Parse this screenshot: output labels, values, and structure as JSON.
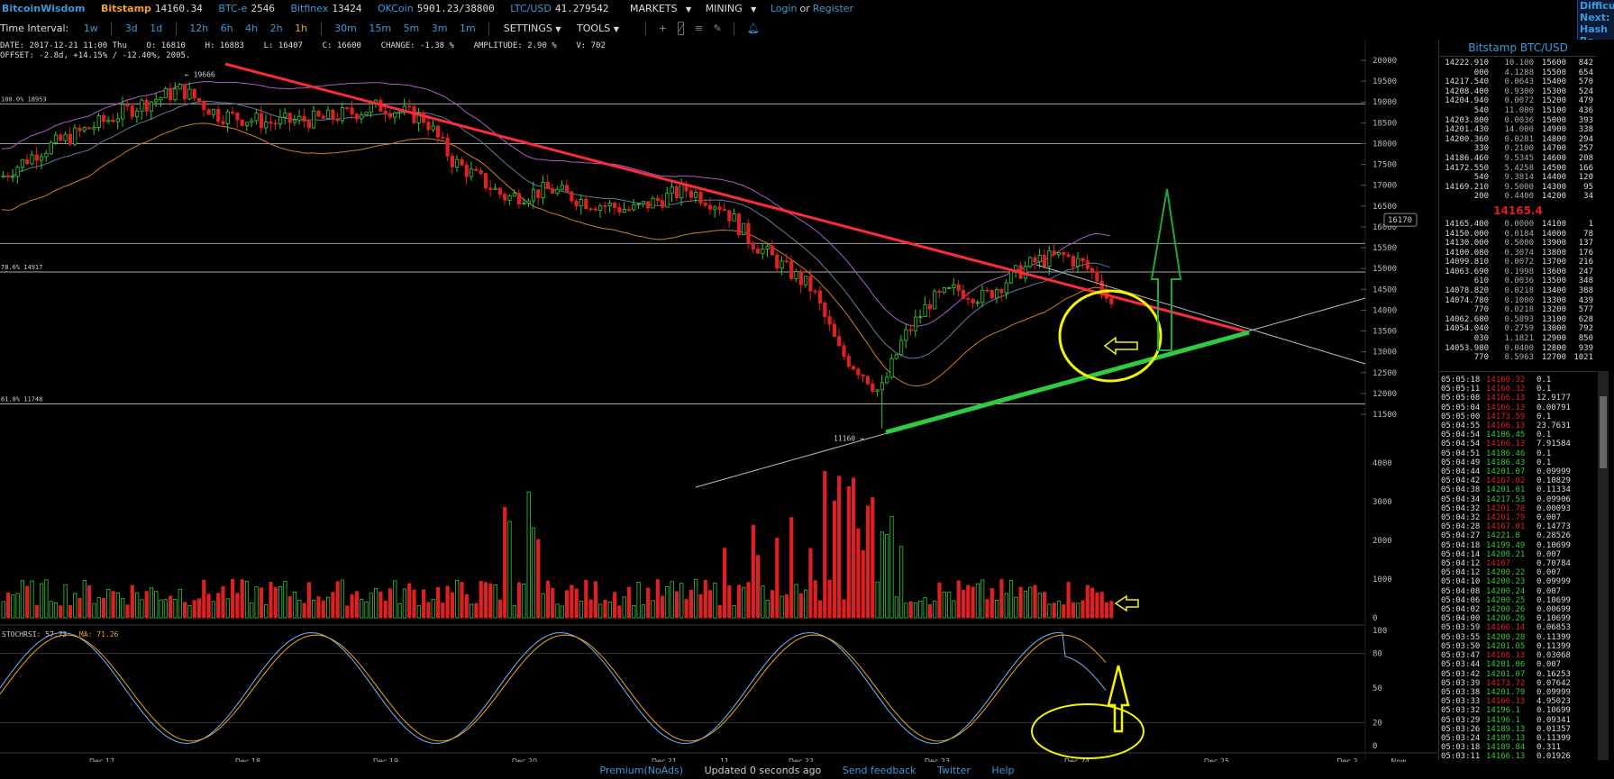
{
  "topbar": {
    "brand": "BitcoinWisdom",
    "tickers": [
      {
        "name": "Bitstamp",
        "price": "14160.34"
      },
      {
        "name": "BTC-e",
        "price": "2546"
      },
      {
        "name": "Bitfinex",
        "price": "13424"
      },
      {
        "name": "OKCoin",
        "price": "5901.23/38800"
      },
      {
        "name": "LTC/USD",
        "price": "41.279542"
      }
    ],
    "markets_label": "MARKETS",
    "mining_label": "MINING",
    "login_label": "Login",
    "or_label": "or",
    "register_label": "Register"
  },
  "corner": {
    "line1": "Difficult",
    "line2": "Next:",
    "line3": "Hash Ra"
  },
  "intervalbar": {
    "label": "Time Interval:",
    "intervals": [
      "1w",
      "3d",
      "1d",
      "12h",
      "6h",
      "4h",
      "2h",
      "1h",
      "30m",
      "15m",
      "5m",
      "3m",
      "1m"
    ],
    "active": "1h",
    "settings_label": "SETTINGS",
    "tools_label": "TOOLS"
  },
  "info": {
    "line1": "DATE: 2017-12-21 11:00 Thu    O: 16810    H: 16883    L: 16407    C: 16600    CHANGE: -1.38 %    AMPLITUDE: 2.90 %    V: 702",
    "line2": "OFFSET: -2.8d, +14.15% / -12.40%, 2005."
  },
  "chart_data": {
    "type": "candlestick",
    "market": "Bitstamp BTC/USD",
    "interval": "1h",
    "y_ticks": [
      "20000",
      "19500",
      "19000",
      "18500",
      "18000",
      "17500",
      "17000",
      "16500",
      "16000",
      "15500",
      "15000",
      "14500",
      "14000",
      "13500",
      "13000",
      "12500",
      "12000",
      "11500"
    ],
    "ylim": [
      11500,
      20000
    ],
    "x_labels": [
      "Dec 17",
      "Dec 18",
      "Dec 19",
      "Dec 20",
      "Dec 21",
      "11",
      "Dec 22",
      "Dec 23",
      "Dec 24",
      "Dec 25",
      "Dec 2",
      "Now"
    ],
    "fib_levels": [
      {
        "label": "100.0% 18953",
        "value": 18953
      },
      {
        "label": "78.6% 14917",
        "value": 14917
      },
      {
        "label": "61.8% 11748",
        "value": 11748
      }
    ],
    "high_label": "19666",
    "low_label": "11160",
    "current_label": "16170",
    "volume_ticks": [
      "4000",
      "3000",
      "2000",
      "1000",
      "0"
    ],
    "stochrsi_label": "STOCHRSI: 57.73",
    "stochrsi_ma_label": "MA: 71.26",
    "stochrsi_ticks": [
      "100",
      "80",
      "50",
      "20",
      "0"
    ],
    "colors": {
      "up": "#35c935",
      "down": "#e02020",
      "trend_red": "#ff2a3a",
      "trend_green": "#2ecc40",
      "annotation": "#f5f500",
      "arrow_green": "#1fa83a"
    }
  },
  "orderbook": {
    "title": "Bitstamp BTC/USD",
    "asks": [
      [
        "14222.910",
        "10.100",
        "15600",
        "842"
      ],
      [
        "000",
        "4.1288",
        "15500",
        "654"
      ],
      [
        "14217.540",
        "0.0643",
        "15400",
        "570"
      ],
      [
        "14208.400",
        "0.9300",
        "15300",
        "524"
      ],
      [
        "14204.940",
        "0.0072",
        "15200",
        "479"
      ],
      [
        "540",
        "11.000",
        "15100",
        "436"
      ],
      [
        "14203.800",
        "0.0036",
        "15000",
        "393"
      ],
      [
        "14201.430",
        "14.000",
        "14900",
        "338"
      ],
      [
        "14200.360",
        "0.0281",
        "14800",
        "294"
      ],
      [
        "330",
        "0.2100",
        "14700",
        "257"
      ],
      [
        "14186.460",
        "9.5345",
        "14600",
        "208"
      ],
      [
        "14172.550",
        "5.4258",
        "14500",
        "166"
      ],
      [
        "540",
        "9.3814",
        "14400",
        "120"
      ],
      [
        "14169.210",
        "9.5000",
        "14300",
        "95"
      ],
      [
        "200",
        "0.4400",
        "14200",
        "34"
      ]
    ],
    "last": "14165.4",
    "bids": [
      [
        "14165.400",
        "0.0000",
        "14100",
        "1"
      ],
      [
        "14150.000",
        "0.0184",
        "14000",
        "78"
      ],
      [
        "14130.000",
        "0.5000",
        "13900",
        "137"
      ],
      [
        "14100.080",
        "0.3074",
        "13800",
        "176"
      ],
      [
        "14099.810",
        "0.0072",
        "13700",
        "216"
      ],
      [
        "14063.690",
        "0.1998",
        "13600",
        "247"
      ],
      [
        "610",
        "0.0036",
        "13500",
        "348"
      ],
      [
        "14078.820",
        "0.0218",
        "13400",
        "388"
      ],
      [
        "14074.780",
        "0.1000",
        "13300",
        "439"
      ],
      [
        "770",
        "0.0218",
        "13200",
        "577"
      ],
      [
        "14062.680",
        "0.5893",
        "13100",
        "628"
      ],
      [
        "14054.040",
        "0.2759",
        "13000",
        "792"
      ],
      [
        "030",
        "1.1821",
        "12900",
        "850"
      ],
      [
        "14053.980",
        "0.0400",
        "12800",
        "939"
      ],
      [
        "770",
        "8.5963",
        "12700",
        "1021"
      ]
    ]
  },
  "trades": [
    [
      "05:05:18",
      "14160.32",
      "dn",
      "0.1"
    ],
    [
      "05:05:11",
      "14160.32",
      "dn",
      "0.1"
    ],
    [
      "05:05:08",
      "14166.13",
      "dn",
      "12.9177"
    ],
    [
      "05:05:04",
      "14166.13",
      "dn",
      "0.00791"
    ],
    [
      "05:05:00",
      "14173.59",
      "dn",
      "0.1"
    ],
    [
      "05:04:55",
      "14166.13",
      "dn",
      "23.7631"
    ],
    [
      "05:04:54",
      "14186.45",
      "up",
      "0.1"
    ],
    [
      "05:04:54",
      "14166.13",
      "dn",
      "7.91584"
    ],
    [
      "05:04:51",
      "14186.46",
      "up",
      "0.1"
    ],
    [
      "05:04:49",
      "14186.43",
      "up",
      "0.1"
    ],
    [
      "05:04:44",
      "14201.07",
      "up",
      "0.09999"
    ],
    [
      "05:04:42",
      "14167.02",
      "dn",
      "0.10829"
    ],
    [
      "05:04:38",
      "14201.01",
      "up",
      "0.11334"
    ],
    [
      "05:04:34",
      "14217.53",
      "up",
      "0.09906"
    ],
    [
      "05:04:32",
      "14201.78",
      "dn",
      "0.00093"
    ],
    [
      "05:04:32",
      "14201.79",
      "dn",
      "0.007"
    ],
    [
      "05:04:28",
      "14167.01",
      "dn",
      "0.14773"
    ],
    [
      "05:04:27",
      "14221.8",
      "up",
      "0.28526"
    ],
    [
      "05:04:18",
      "14199.49",
      "up",
      "0.10699"
    ],
    [
      "05:04:14",
      "14200.21",
      "up",
      "0.007"
    ],
    [
      "05:04:12",
      "14167",
      "dn",
      "0.70784"
    ],
    [
      "05:04:12",
      "14200.22",
      "up",
      "0.007"
    ],
    [
      "05:04:10",
      "14200.23",
      "up",
      "0.09999"
    ],
    [
      "05:04:08",
      "14200.24",
      "up",
      "0.007"
    ],
    [
      "05:04:06",
      "14200.25",
      "up",
      "0.10699"
    ],
    [
      "05:04:02",
      "14200.26",
      "up",
      "0.00699"
    ],
    [
      "05:04:00",
      "14200.26",
      "up",
      "0.10699"
    ],
    [
      "05:03:59",
      "14166.14",
      "dn",
      "0.06853"
    ],
    [
      "05:03:55",
      "14200.28",
      "up",
      "0.11399"
    ],
    [
      "05:03:50",
      "14201.05",
      "up",
      "0.11399"
    ],
    [
      "05:03:47",
      "14166.13",
      "dn",
      "0.03068"
    ],
    [
      "05:03:44",
      "14201.06",
      "up",
      "0.007"
    ],
    [
      "05:03:42",
      "14201.07",
      "up",
      "0.16253"
    ],
    [
      "05:03:39",
      "14173.72",
      "dn",
      "0.07642"
    ],
    [
      "05:03:38",
      "14201.79",
      "up",
      "0.09999"
    ],
    [
      "05:03:33",
      "14166.13",
      "dn",
      "4.95023"
    ],
    [
      "05:03:32",
      "14196.1",
      "up",
      "0.10699"
    ],
    [
      "05:03:29",
      "14196.1",
      "up",
      "0.09341"
    ],
    [
      "05:03:26",
      "14189.13",
      "up",
      "0.01357"
    ],
    [
      "05:03:24",
      "14189.13",
      "up",
      "0.11399"
    ],
    [
      "05:03:18",
      "14189.84",
      "up",
      "0.311"
    ],
    [
      "05:03:11",
      "14166.13",
      "up",
      "0.01926"
    ]
  ],
  "footer": {
    "premium": "Premium(NoAds)",
    "updated": "Updated 0 seconds ago",
    "feedback": "Send feedback",
    "twitter": "Twitter",
    "help": "Help"
  }
}
